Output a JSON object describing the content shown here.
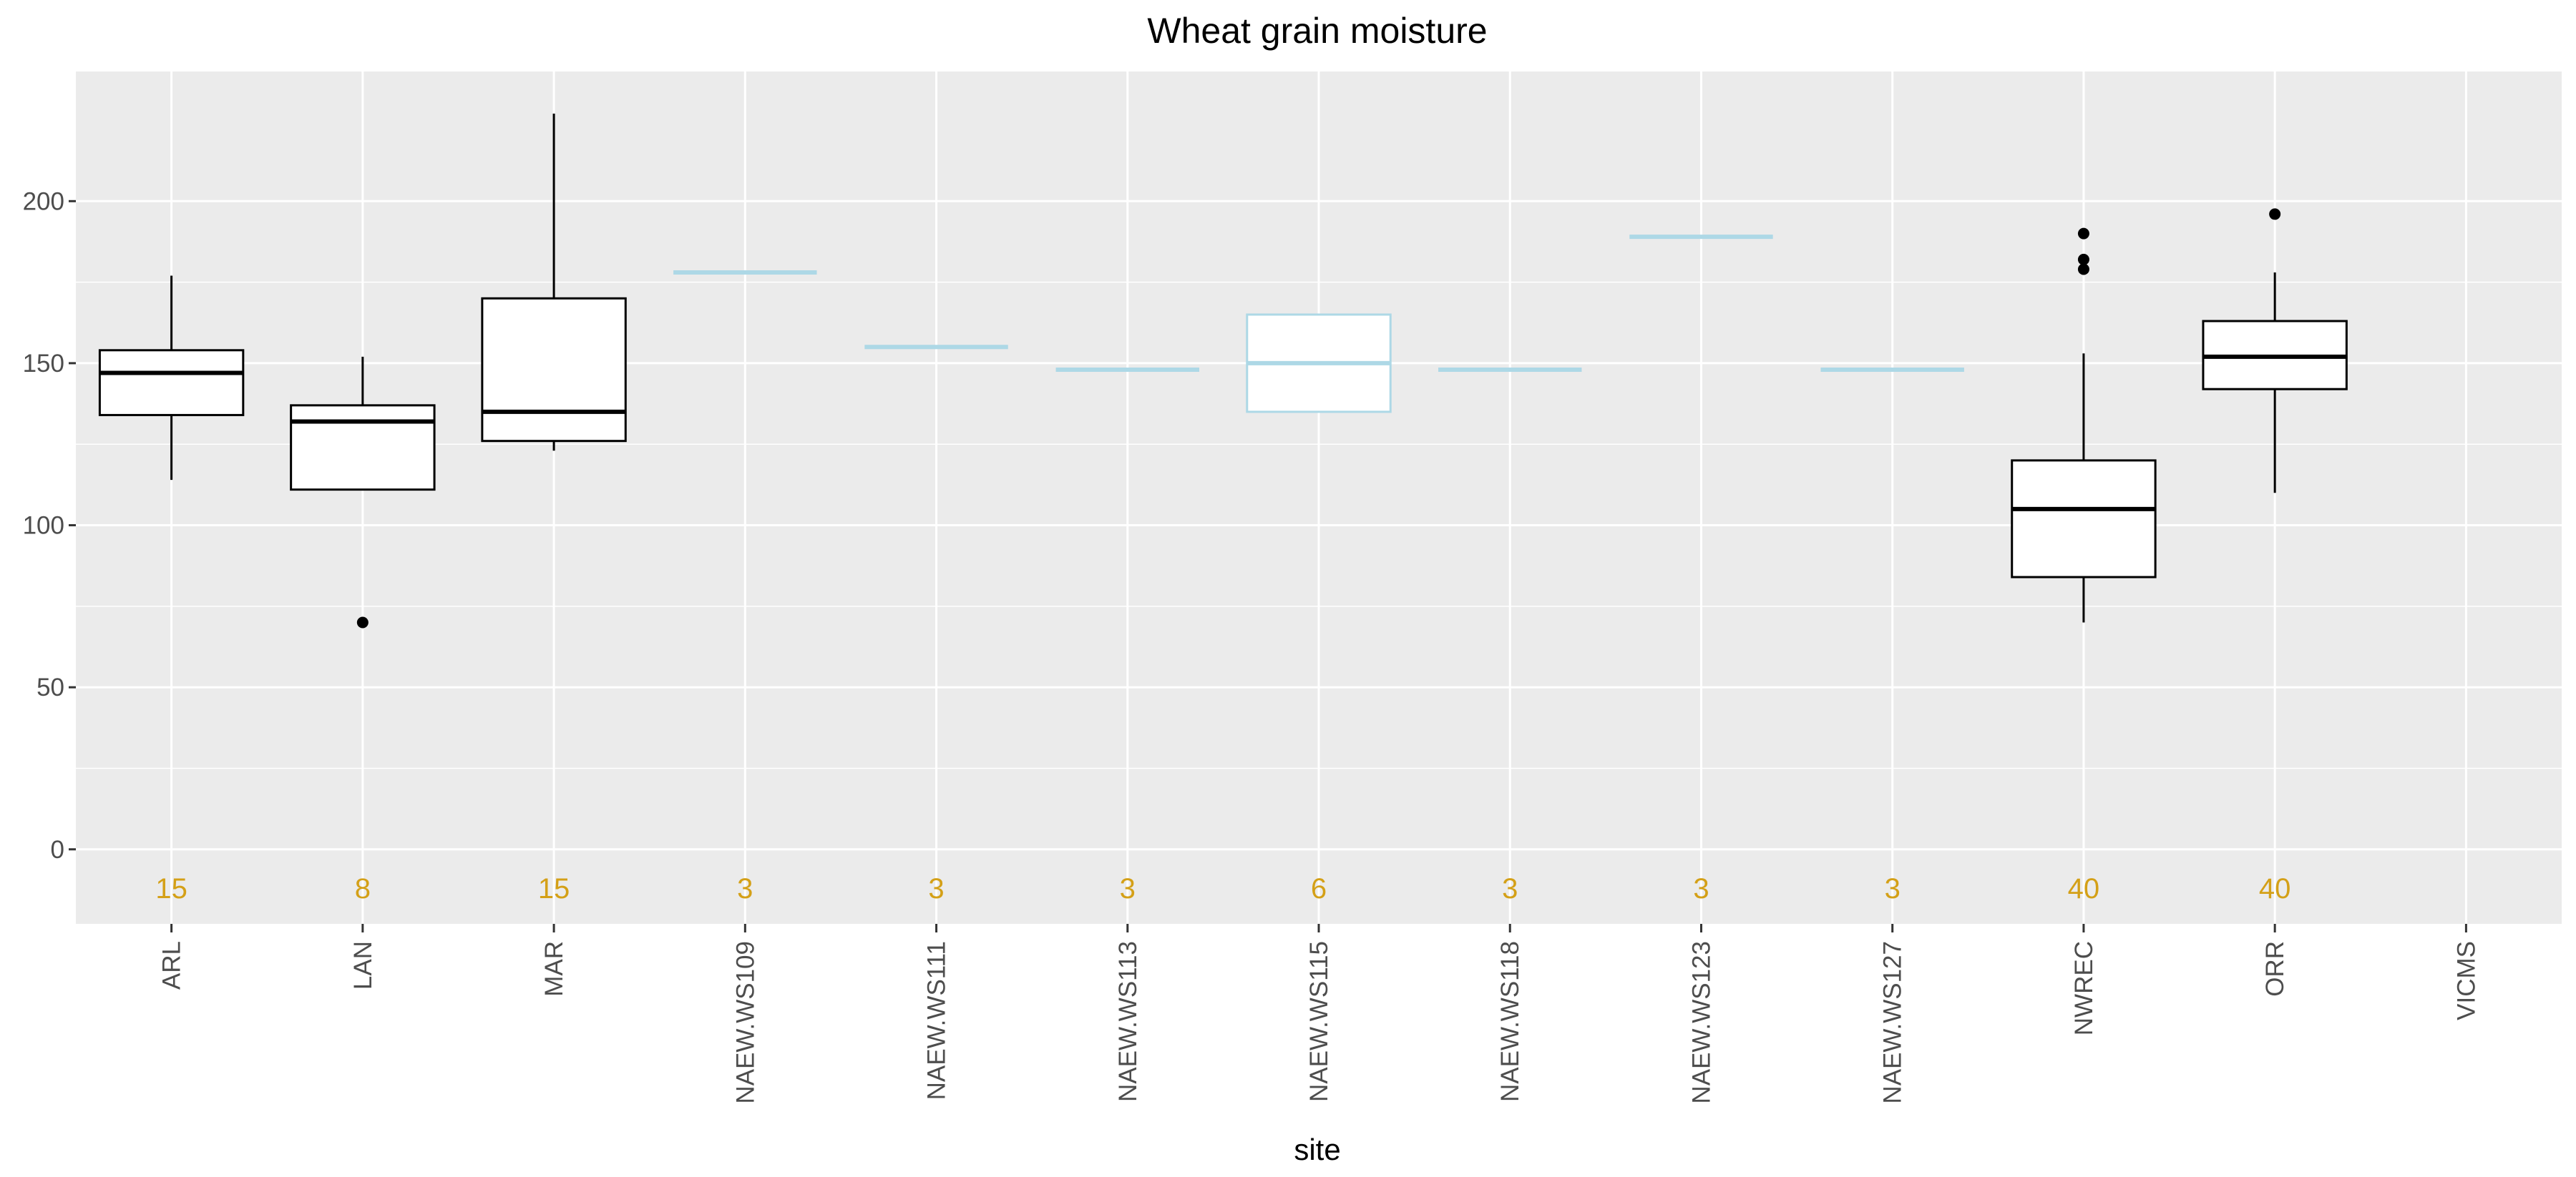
{
  "chart_data": {
    "type": "boxplot",
    "title": "Wheat grain moisture",
    "xlabel": "site",
    "ylabel": "",
    "ylim": [
      -23,
      240
    ],
    "yticks": [
      0,
      50,
      100,
      150,
      200
    ],
    "grid": true,
    "colors": {
      "panel": "#ebebeb",
      "grid": "#ffffff",
      "box_default": "#000000",
      "box_few": "#add8e6",
      "count_label": "#d4a017",
      "tick_text": "#4d4d4d",
      "tick_mark": "#333333"
    },
    "categories": [
      "ARL",
      "LAN",
      "MAR",
      "NAEW.WS109",
      "NAEW.WS111",
      "NAEW.WS113",
      "NAEW.WS115",
      "NAEW.WS118",
      "NAEW.WS123",
      "NAEW.WS127",
      "NWREC",
      "ORR",
      "VICMS"
    ],
    "counts": [
      "15",
      "8",
      "15",
      "3",
      "3",
      "3",
      "6",
      "3",
      "3",
      "3",
      "40",
      "40",
      ""
    ],
    "boxes": [
      {
        "site": "ARL",
        "color": "default",
        "whisker_low": 114,
        "q1": 134,
        "median": 147,
        "q3": 154,
        "whisker_high": 177,
        "outliers": []
      },
      {
        "site": "LAN",
        "color": "default",
        "whisker_low": 111,
        "q1": 111,
        "median": 132,
        "q3": 137,
        "whisker_high": 152,
        "outliers": [
          70
        ]
      },
      {
        "site": "MAR",
        "color": "default",
        "whisker_low": 123,
        "q1": 126,
        "median": 135,
        "q3": 170,
        "whisker_high": 227,
        "outliers": []
      },
      {
        "site": "NAEW.WS109",
        "color": "few",
        "whisker_low": 178,
        "q1": 178,
        "median": 178,
        "q3": 178,
        "whisker_high": 178,
        "outliers": []
      },
      {
        "site": "NAEW.WS111",
        "color": "few",
        "whisker_low": 155,
        "q1": 155,
        "median": 155,
        "q3": 155,
        "whisker_high": 155,
        "outliers": []
      },
      {
        "site": "NAEW.WS113",
        "color": "few",
        "whisker_low": 148,
        "q1": 148,
        "median": 148,
        "q3": 148,
        "whisker_high": 148,
        "outliers": []
      },
      {
        "site": "NAEW.WS115",
        "color": "few",
        "whisker_low": 135,
        "q1": 135,
        "median": 150,
        "q3": 165,
        "whisker_high": 165,
        "outliers": []
      },
      {
        "site": "NAEW.WS118",
        "color": "few",
        "whisker_low": 148,
        "q1": 148,
        "median": 148,
        "q3": 148,
        "whisker_high": 148,
        "outliers": []
      },
      {
        "site": "NAEW.WS123",
        "color": "few",
        "whisker_low": 189,
        "q1": 189,
        "median": 189,
        "q3": 189,
        "whisker_high": 189,
        "outliers": []
      },
      {
        "site": "NAEW.WS127",
        "color": "few",
        "whisker_low": 148,
        "q1": 148,
        "median": 148,
        "q3": 148,
        "whisker_high": 148,
        "outliers": []
      },
      {
        "site": "NWREC",
        "color": "default",
        "whisker_low": 70,
        "q1": 84,
        "median": 105,
        "q3": 120,
        "whisker_high": 153,
        "outliers": [
          179,
          182,
          190
        ]
      },
      {
        "site": "ORR",
        "color": "default",
        "whisker_low": 110,
        "q1": 142,
        "median": 152,
        "q3": 163,
        "whisker_high": 178,
        "outliers": [
          196
        ]
      }
    ]
  }
}
